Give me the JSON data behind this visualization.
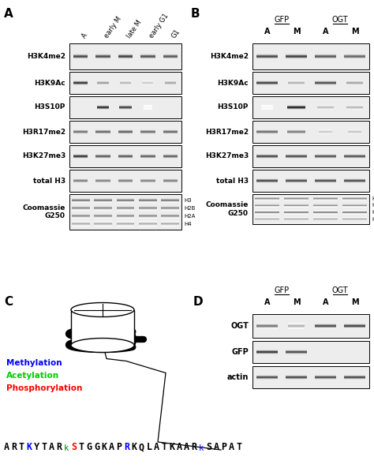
{
  "panel_A_col_labels": [
    "A",
    "early M",
    "late M",
    "early G1",
    "G1"
  ],
  "panel_A_row_labels": [
    "H3K4me2",
    "H3K9Ac",
    "H3S10P",
    "H3R17me2",
    "H3K27me3",
    "total H3",
    "Coomassie\nG250"
  ],
  "panel_B_col_labels_top": [
    "GFP",
    "OGT"
  ],
  "panel_B_col_labels": [
    "A",
    "M",
    "A",
    "M"
  ],
  "panel_B_row_labels": [
    "H3K4me2",
    "H3K9Ac",
    "H3S10P",
    "H3R17me2",
    "H3K27me3",
    "total H3",
    "Coomassie\nG250"
  ],
  "panel_D_col_labels_top": [
    "GFP",
    "OGT"
  ],
  "panel_D_col_labels": [
    "A",
    "M",
    "A",
    "M"
  ],
  "panel_D_row_labels": [
    "OGT",
    "GFP",
    "actin"
  ],
  "coomassie_bands": [
    "H3",
    "H2B",
    "H2A",
    "H4"
  ],
  "legend_methylation": "Methylation",
  "legend_acetylation": "Acetylation",
  "legend_phosphorylation": "Phosphorylation",
  "legend_methylation_color": "#0000FF",
  "legend_acetylation_color": "#00CC00",
  "legend_phosphorylation_color": "#FF0000",
  "bg_color": "#ffffff",
  "panelA_bands": [
    [
      [
        0.1,
        0.72,
        0.13
      ],
      [
        0.3,
        0.7,
        0.13
      ],
      [
        0.5,
        0.75,
        0.13
      ],
      [
        0.7,
        0.68,
        0.13
      ],
      [
        0.9,
        0.65,
        0.13
      ]
    ],
    [
      [
        0.1,
        0.8,
        0.13
      ],
      [
        0.3,
        0.38,
        0.1
      ],
      [
        0.5,
        0.28,
        0.1
      ],
      [
        0.7,
        0.2,
        0.1
      ],
      [
        0.9,
        0.35,
        0.1
      ]
    ],
    [
      [
        0.1,
        0.02,
        0.13
      ],
      [
        0.3,
        0.82,
        0.11
      ],
      [
        0.5,
        0.75,
        0.11
      ],
      [
        0.7,
        0.03,
        0.08
      ],
      [
        0.9,
        0.02,
        0.08
      ]
    ],
    [
      [
        0.1,
        0.55,
        0.13
      ],
      [
        0.3,
        0.6,
        0.13
      ],
      [
        0.5,
        0.62,
        0.13
      ],
      [
        0.7,
        0.58,
        0.13
      ],
      [
        0.9,
        0.6,
        0.13
      ]
    ],
    [
      [
        0.1,
        0.8,
        0.13
      ],
      [
        0.3,
        0.65,
        0.13
      ],
      [
        0.5,
        0.65,
        0.13
      ],
      [
        0.7,
        0.63,
        0.13
      ],
      [
        0.9,
        0.63,
        0.13
      ]
    ],
    [
      [
        0.1,
        0.5,
        0.13
      ],
      [
        0.3,
        0.48,
        0.13
      ],
      [
        0.5,
        0.5,
        0.13
      ],
      [
        0.7,
        0.48,
        0.13
      ],
      [
        0.9,
        0.5,
        0.13
      ]
    ]
  ],
  "panelB_bands": [
    [
      [
        0.125,
        0.72,
        0.18
      ],
      [
        0.375,
        0.75,
        0.18
      ],
      [
        0.625,
        0.65,
        0.18
      ],
      [
        0.875,
        0.6,
        0.18
      ]
    ],
    [
      [
        0.125,
        0.75,
        0.18
      ],
      [
        0.375,
        0.3,
        0.14
      ],
      [
        0.625,
        0.7,
        0.18
      ],
      [
        0.875,
        0.35,
        0.14
      ]
    ],
    [
      [
        0.125,
        0.03,
        0.1
      ],
      [
        0.375,
        0.88,
        0.16
      ],
      [
        0.625,
        0.25,
        0.14
      ],
      [
        0.875,
        0.28,
        0.14
      ]
    ],
    [
      [
        0.125,
        0.58,
        0.18
      ],
      [
        0.375,
        0.52,
        0.15
      ],
      [
        0.625,
        0.2,
        0.12
      ],
      [
        0.875,
        0.22,
        0.12
      ]
    ],
    [
      [
        0.125,
        0.72,
        0.18
      ],
      [
        0.375,
        0.7,
        0.18
      ],
      [
        0.625,
        0.68,
        0.18
      ],
      [
        0.875,
        0.68,
        0.18
      ]
    ],
    [
      [
        0.125,
        0.72,
        0.18
      ],
      [
        0.375,
        0.7,
        0.18
      ],
      [
        0.625,
        0.7,
        0.18
      ],
      [
        0.875,
        0.7,
        0.18
      ]
    ]
  ],
  "panelD_bands": [
    [
      [
        0.125,
        0.55,
        0.18
      ],
      [
        0.375,
        0.3,
        0.14
      ],
      [
        0.625,
        0.72,
        0.18
      ],
      [
        0.875,
        0.75,
        0.18
      ]
    ],
    [
      [
        0.125,
        0.8,
        0.18
      ],
      [
        0.375,
        0.72,
        0.18
      ],
      [
        0.625,
        0.02,
        0.05
      ],
      [
        0.875,
        0.02,
        0.05
      ]
    ],
    [
      [
        0.125,
        0.7,
        0.18
      ],
      [
        0.375,
        0.72,
        0.18
      ],
      [
        0.625,
        0.7,
        0.18
      ],
      [
        0.875,
        0.72,
        0.18
      ]
    ]
  ],
  "sequence_parts": [
    [
      "ART",
      "black"
    ],
    [
      "K",
      "blue"
    ],
    [
      "YTAR",
      "black"
    ],
    [
      "k",
      "green"
    ],
    [
      "S",
      "red"
    ],
    [
      "TGGKAP",
      "black"
    ],
    [
      "R",
      "blue"
    ],
    [
      "KQLATKAAR",
      "black"
    ],
    [
      "k",
      "blue"
    ],
    [
      "SAPAT",
      "black"
    ]
  ]
}
